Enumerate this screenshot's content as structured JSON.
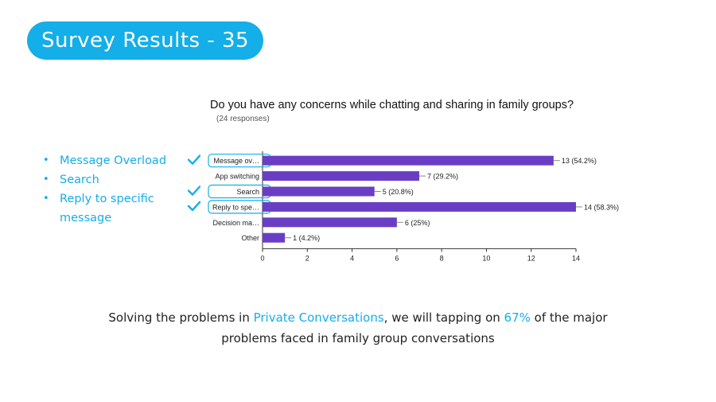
{
  "slide": {
    "title": "Survey Results - 35"
  },
  "bullets": [
    "Message Overload",
    "Search",
    "Reply to specific message"
  ],
  "summary": {
    "part1": "Solving the problems in ",
    "highlight1": "Private Conversations",
    "part2": ", we will tapping on ",
    "highlight2": "67%",
    "part3": " of the major problems faced in family group conversations"
  },
  "colors": {
    "accent": "#14aee8",
    "bar": "#6a3ec4",
    "check": "#14aee8"
  },
  "chart_data": {
    "type": "bar",
    "orientation": "horizontal",
    "title": "Do you have any concerns while chatting and sharing in family groups?",
    "subtitle": "(24 responses)",
    "categories": [
      "Message ov…",
      "App switching",
      "Search",
      "Reply to spe…",
      "Decision ma…",
      "Other"
    ],
    "values": [
      13,
      7,
      5,
      14,
      6,
      1
    ],
    "data_labels": [
      "13 (54.2%)",
      "7 (29.2%)",
      "5 (20.8%)",
      "14 (58.3%)",
      "6 (25%)",
      "1 (4.2%)"
    ],
    "checked": [
      true,
      false,
      true,
      true,
      false,
      false
    ],
    "xlim": [
      0,
      14
    ],
    "xticks": [
      0,
      2,
      4,
      6,
      8,
      10,
      12,
      14
    ],
    "grid": false
  }
}
